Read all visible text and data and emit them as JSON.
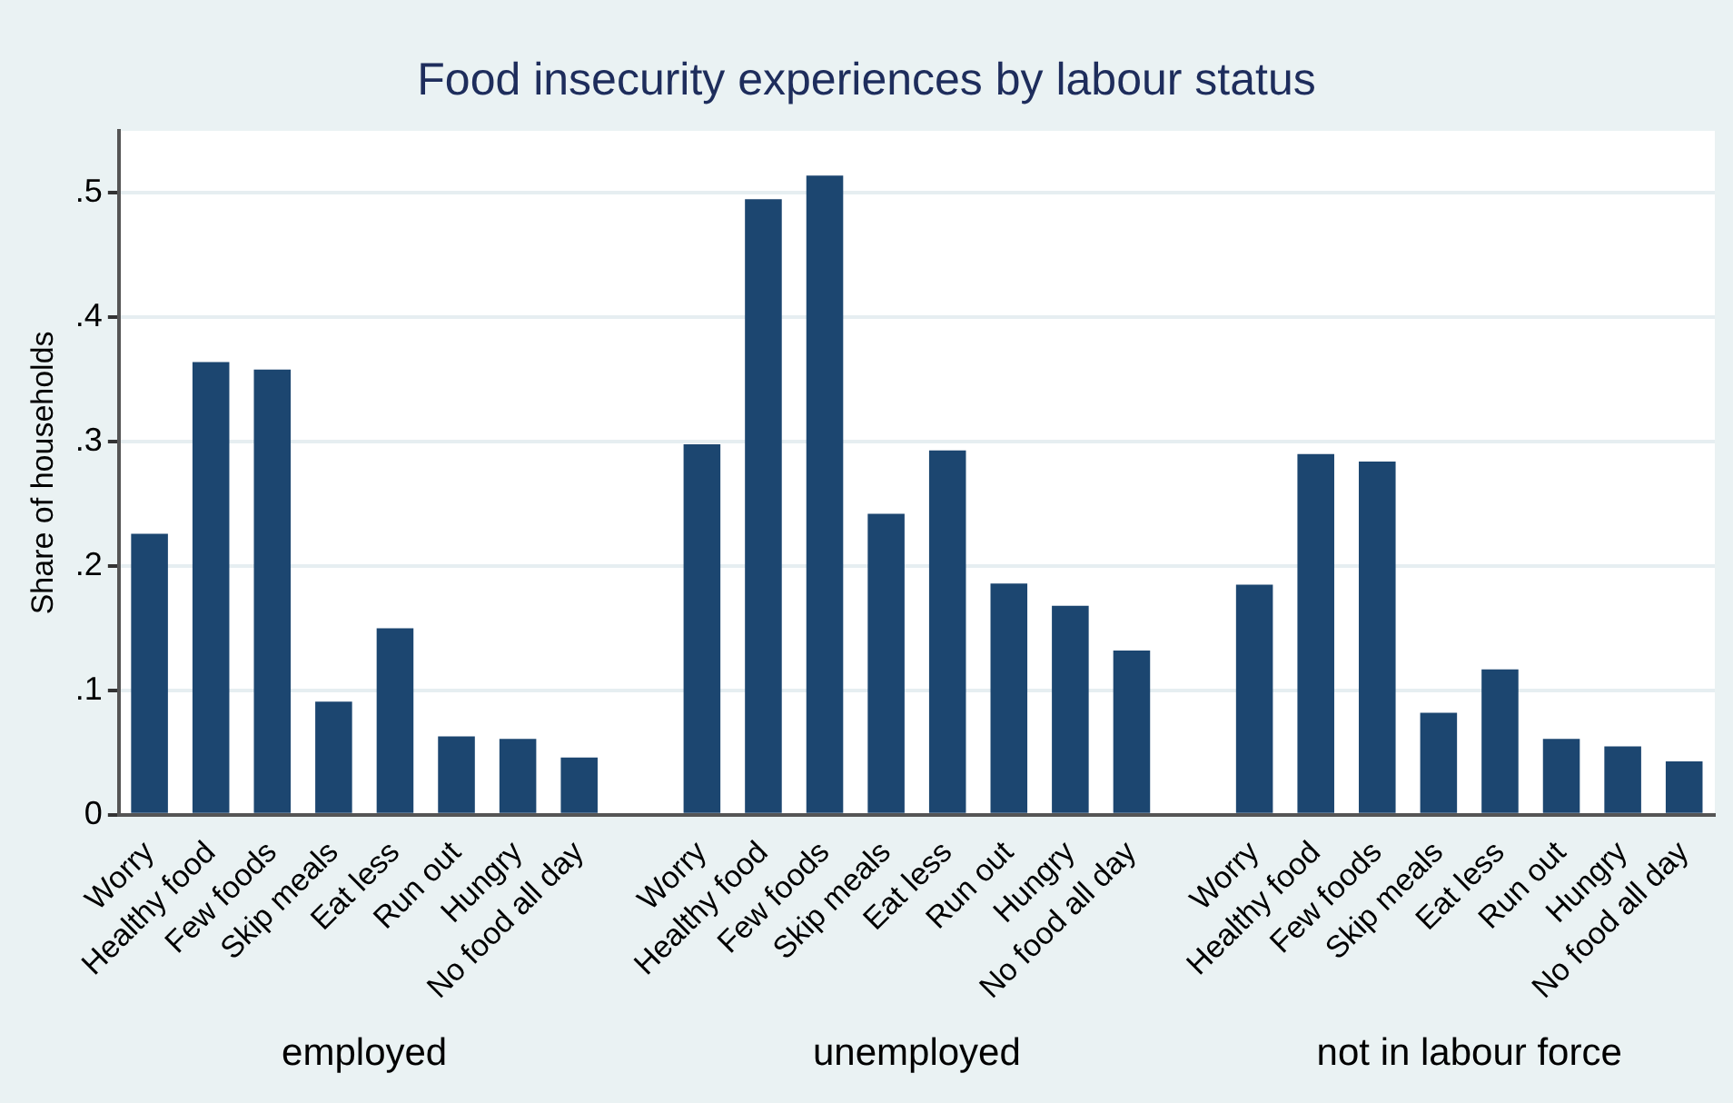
{
  "chart_data": {
    "type": "bar",
    "title": "Food insecurity experiences by labour status",
    "ylabel": "Share of households",
    "categories": [
      "Worry",
      "Healthy food",
      "Few foods",
      "Skip meals",
      "Eat less",
      "Run out",
      "Hungry",
      "No food all day",
      null,
      "Worry",
      "Healthy food",
      "Few foods",
      "Skip meals",
      "Eat less",
      "Run out",
      "Hungry",
      "No food all day",
      null,
      "Worry",
      "Healthy food",
      "Few foods",
      "Skip meals",
      "Eat less",
      "Run out",
      "Hungry",
      "No food all day"
    ],
    "values": [
      0.226,
      0.364,
      0.358,
      0.091,
      0.15,
      0.063,
      0.061,
      0.046,
      null,
      0.298,
      0.495,
      0.514,
      0.242,
      0.293,
      0.186,
      0.168,
      0.132,
      null,
      0.185,
      0.29,
      0.284,
      0.082,
      0.117,
      0.061,
      0.055,
      0.043
    ],
    "color": "#1c4670",
    "ylim": [
      0,
      0.55
    ],
    "yticks": [
      {
        "value": 0,
        "label": "0"
      },
      {
        "value": 0.1,
        "label": ".1"
      },
      {
        "value": 0.2,
        "label": ".2"
      },
      {
        "value": 0.3,
        "label": ".3"
      },
      {
        "value": 0.4,
        "label": ".4"
      },
      {
        "value": 0.5,
        "label": ".5"
      }
    ],
    "grid": "y",
    "legend": false,
    "annotations": [
      "employed",
      "unemployed",
      "not in labour force"
    ]
  }
}
